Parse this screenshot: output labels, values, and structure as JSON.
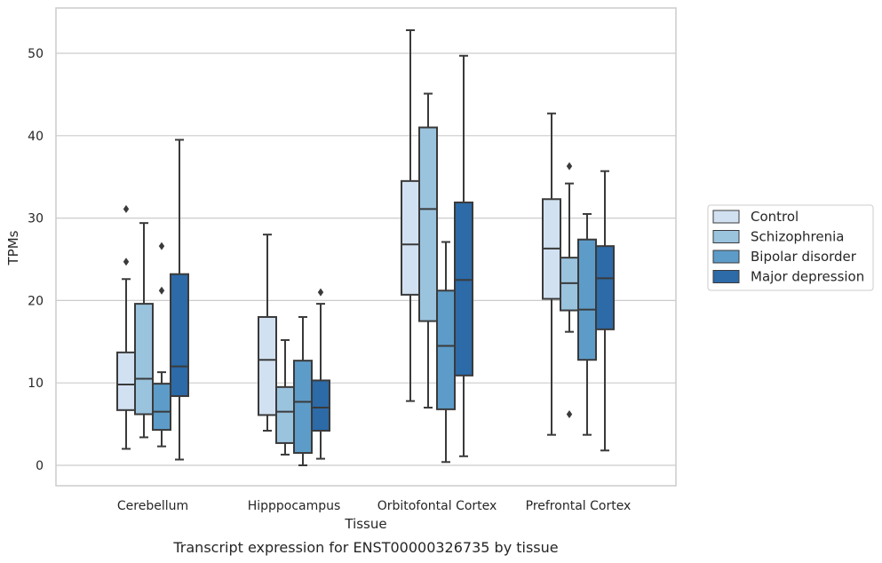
{
  "chart_data": {
    "type": "box",
    "xlabel": "Tissue",
    "ylabel": "TPMs",
    "caption": "Transcript expression for ENST00000326735 by tissue",
    "ylim": [
      -2.5,
      55.5
    ],
    "yticks": [
      0,
      10,
      20,
      30,
      40,
      50
    ],
    "grid": "horizontal",
    "legend_position": "right",
    "categories": [
      "Cerebellum",
      "Hipppocampus",
      "Orbitofontal Cortex",
      "Prefrontal Cortex"
    ],
    "series": [
      {
        "name": "Control",
        "color": "#d1e1f2",
        "boxes": [
          {
            "whisker_low": 2.0,
            "q1": 6.7,
            "median": 9.8,
            "q3": 13.7,
            "whisker_high": 22.6,
            "outliers": [
              24.7,
              31.1
            ]
          },
          {
            "whisker_low": 4.2,
            "q1": 6.1,
            "median": 12.8,
            "q3": 18.0,
            "whisker_high": 28.0,
            "outliers": []
          },
          {
            "whisker_low": 7.8,
            "q1": 20.7,
            "median": 26.8,
            "q3": 34.5,
            "whisker_high": 52.8,
            "outliers": []
          },
          {
            "whisker_low": 3.7,
            "q1": 20.2,
            "median": 26.3,
            "q3": 32.3,
            "whisker_high": 42.7,
            "outliers": []
          }
        ]
      },
      {
        "name": "Schizophrenia",
        "color": "#9ac3de",
        "boxes": [
          {
            "whisker_low": 3.4,
            "q1": 6.2,
            "median": 10.5,
            "q3": 19.6,
            "whisker_high": 29.4,
            "outliers": []
          },
          {
            "whisker_low": 1.3,
            "q1": 2.7,
            "median": 6.5,
            "q3": 9.5,
            "whisker_high": 15.2,
            "outliers": []
          },
          {
            "whisker_low": 7.0,
            "q1": 17.5,
            "median": 31.1,
            "q3": 41.0,
            "whisker_high": 45.1,
            "outliers": []
          },
          {
            "whisker_low": 16.2,
            "q1": 18.8,
            "median": 22.1,
            "q3": 25.2,
            "whisker_high": 34.2,
            "outliers": [
              6.2,
              36.3
            ]
          }
        ]
      },
      {
        "name": "Bipolar disorder",
        "color": "#5d9cc9",
        "boxes": [
          {
            "whisker_low": 2.3,
            "q1": 4.3,
            "median": 6.5,
            "q3": 9.9,
            "whisker_high": 11.3,
            "outliers": [
              21.2,
              26.6
            ]
          },
          {
            "whisker_low": 0.0,
            "q1": 1.5,
            "median": 7.7,
            "q3": 12.7,
            "whisker_high": 18.0,
            "outliers": []
          },
          {
            "whisker_low": 0.4,
            "q1": 6.8,
            "median": 14.5,
            "q3": 21.2,
            "whisker_high": 27.1,
            "outliers": []
          },
          {
            "whisker_low": 3.7,
            "q1": 12.8,
            "median": 18.9,
            "q3": 27.4,
            "whisker_high": 30.5,
            "outliers": []
          }
        ]
      },
      {
        "name": "Major depression",
        "color": "#2c6aa8",
        "boxes": [
          {
            "whisker_low": 0.7,
            "q1": 8.4,
            "median": 12.0,
            "q3": 23.2,
            "whisker_high": 39.5,
            "outliers": []
          },
          {
            "whisker_low": 0.8,
            "q1": 4.2,
            "median": 7.0,
            "q3": 10.3,
            "whisker_high": 19.6,
            "outliers": [
              21.0
            ]
          },
          {
            "whisker_low": 1.1,
            "q1": 10.9,
            "median": 22.5,
            "q3": 31.9,
            "whisker_high": 49.7,
            "outliers": []
          },
          {
            "whisker_low": 1.8,
            "q1": 16.5,
            "median": 22.7,
            "q3": 26.6,
            "whisker_high": 35.7,
            "outliers": []
          }
        ]
      }
    ]
  }
}
